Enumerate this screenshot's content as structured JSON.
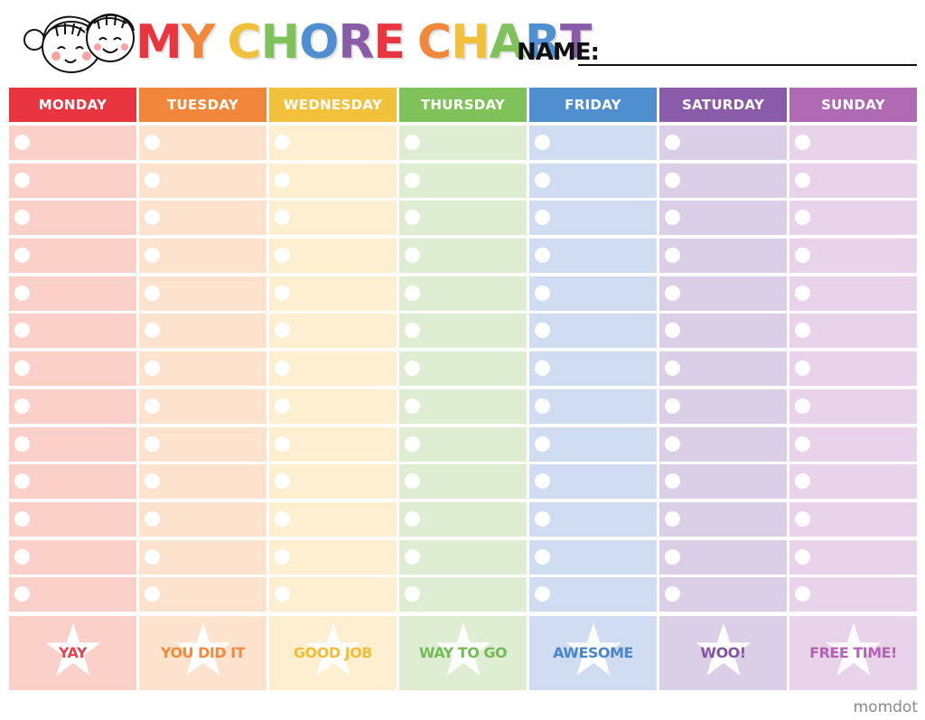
{
  "header": {
    "title_word1": "MY",
    "title_word2": "CHORE",
    "title_word3": "CHART",
    "name_label": "NAME:"
  },
  "days": [
    {
      "label": "MONDAY",
      "header_color": "#e8353f",
      "cell_color": "#fbd0c8",
      "reward": "YAY",
      "reward_color": "#e5424f"
    },
    {
      "label": "TUESDAY",
      "header_color": "#f0873a",
      "cell_color": "#fde3ce",
      "reward": "YOU DID IT",
      "reward_color": "#f08a3f"
    },
    {
      "label": "WEDNESDAY",
      "header_color": "#f2c13c",
      "cell_color": "#fdefcf",
      "reward": "GOOD JOB",
      "reward_color": "#f2be3a"
    },
    {
      "label": "THURSDAY",
      "header_color": "#7fc25a",
      "cell_color": "#dfeed3",
      "reward": "WAY TO GO",
      "reward_color": "#74bb55"
    },
    {
      "label": "FRIDAY",
      "header_color": "#4f8fd0",
      "cell_color": "#cfdcf1",
      "reward": "AWESOME",
      "reward_color": "#4a86c8"
    },
    {
      "label": "SATURDAY",
      "header_color": "#8a5ba8",
      "cell_color": "#dbcfe8",
      "reward": "WOO!",
      "reward_color": "#8454a5"
    },
    {
      "label": "SUNDAY",
      "header_color": "#b06ab3",
      "cell_color": "#e8d3ea",
      "reward": "FREE TIME!",
      "reward_color": "#b462b4"
    }
  ],
  "rows_per_day": 13,
  "title_letter_colors": [
    "#e8353f",
    "#f0873a",
    "#f2c13c",
    "#7fc25a",
    "#4f8fd0",
    "#8a5ba8",
    "#e8353f",
    "#f0873a",
    "#f2c13c",
    "#7fc25a",
    "#4f8fd0",
    "#8a5ba8"
  ],
  "brand": "momdot"
}
